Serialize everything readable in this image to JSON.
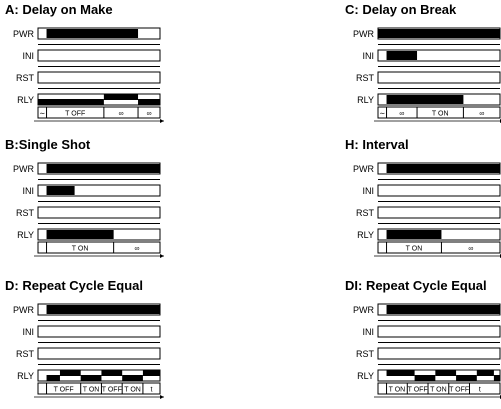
{
  "colors": {
    "ink": "#000000",
    "paper": "#ffffff"
  },
  "row_labels": [
    "PWR",
    "INI",
    "RST",
    "RLY"
  ],
  "infinity": "∞",
  "panels": [
    {
      "id": "A",
      "title": "A: Delay on Make",
      "hi": {
        "PWR": [
          [
            0.07,
            0.82
          ]
        ],
        "INI": [],
        "RST": [],
        "RLY": [
          [
            0.0,
            0.54
          ],
          [
            0.54,
            0.82
          ],
          [
            0.82,
            1.0
          ]
        ]
      },
      "rly_high": [
        false,
        true,
        false
      ],
      "segments": [
        {
          "from": 0.0,
          "to": 0.07,
          "text": "∼"
        },
        {
          "from": 0.07,
          "to": 0.54,
          "text": "T OFF"
        },
        {
          "from": 0.54,
          "to": 0.82,
          "text": "∞"
        },
        {
          "from": 0.82,
          "to": 1.0,
          "text": "∞"
        }
      ]
    },
    {
      "id": "C",
      "title": "C: Delay on Break",
      "hi": {
        "PWR": [
          [
            0.0,
            1.0
          ]
        ],
        "INI": [
          [
            0.07,
            0.32
          ]
        ],
        "RST": [],
        "RLY": [
          [
            0.07,
            0.7
          ]
        ]
      },
      "rly_high": [],
      "segments": [
        {
          "from": 0.0,
          "to": 0.07,
          "text": "∼"
        },
        {
          "from": 0.07,
          "to": 0.32,
          "text": "∞"
        },
        {
          "from": 0.32,
          "to": 0.7,
          "text": "T ON"
        },
        {
          "from": 0.7,
          "to": 1.0,
          "text": "∞"
        }
      ]
    },
    {
      "id": "B",
      "title": "B:Single Shot",
      "hi": {
        "PWR": [
          [
            0.07,
            1.0
          ]
        ],
        "INI": [
          [
            0.07,
            0.3
          ]
        ],
        "RST": [],
        "RLY": [
          [
            0.07,
            0.62
          ]
        ]
      },
      "rly_high": [],
      "segments": [
        {
          "from": 0.07,
          "to": 0.62,
          "text": "T ON"
        },
        {
          "from": 0.62,
          "to": 1.0,
          "text": "∞"
        }
      ]
    },
    {
      "id": "H",
      "title": "H: Interval",
      "hi": {
        "PWR": [
          [
            0.07,
            1.0
          ]
        ],
        "INI": [],
        "RST": [],
        "RLY": [
          [
            0.07,
            0.52
          ]
        ]
      },
      "rly_high": [],
      "segments": [
        {
          "from": 0.07,
          "to": 0.52,
          "text": "T ON"
        },
        {
          "from": 0.52,
          "to": 1.0,
          "text": "∞"
        }
      ]
    },
    {
      "id": "D",
      "title": "D: Repeat Cycle Equal",
      "hi": {
        "PWR": [
          [
            0.07,
            1.0
          ]
        ],
        "INI": [],
        "RST": [],
        "RLY": [
          [
            0.07,
            0.18
          ],
          [
            0.18,
            0.35
          ],
          [
            0.35,
            0.52
          ],
          [
            0.52,
            0.69
          ],
          [
            0.69,
            0.86
          ],
          [
            0.86,
            1.0
          ]
        ]
      },
      "rly_high": [
        false,
        true,
        false,
        true,
        false,
        true
      ],
      "segments": [
        {
          "from": 0.07,
          "to": 0.35,
          "text": "T OFF"
        },
        {
          "from": 0.35,
          "to": 0.52,
          "text": "T ON"
        },
        {
          "from": 0.52,
          "to": 0.69,
          "text": "T OFF"
        },
        {
          "from": 0.69,
          "to": 0.86,
          "text": "T ON"
        },
        {
          "from": 0.86,
          "to": 1.0,
          "text": "t"
        }
      ]
    },
    {
      "id": "DI",
      "title": "DI: Repeat Cycle Equal",
      "hi": {
        "PWR": [
          [
            0.07,
            1.0
          ]
        ],
        "INI": [],
        "RST": [],
        "RLY": [
          [
            0.07,
            0.3
          ],
          [
            0.3,
            0.47
          ],
          [
            0.47,
            0.64
          ],
          [
            0.64,
            0.81
          ],
          [
            0.81,
            0.95
          ],
          [
            0.95,
            1.0
          ]
        ]
      },
      "rly_high": [
        true,
        false,
        true,
        false,
        true,
        false
      ],
      "segments": [
        {
          "from": 0.07,
          "to": 0.24,
          "text": "T ON"
        },
        {
          "from": 0.24,
          "to": 0.41,
          "text": "T OFF"
        },
        {
          "from": 0.41,
          "to": 0.58,
          "text": "T ON"
        },
        {
          "from": 0.58,
          "to": 0.75,
          "text": "T OFF"
        },
        {
          "from": 0.75,
          "to": 0.92,
          "text": "t"
        }
      ]
    }
  ]
}
